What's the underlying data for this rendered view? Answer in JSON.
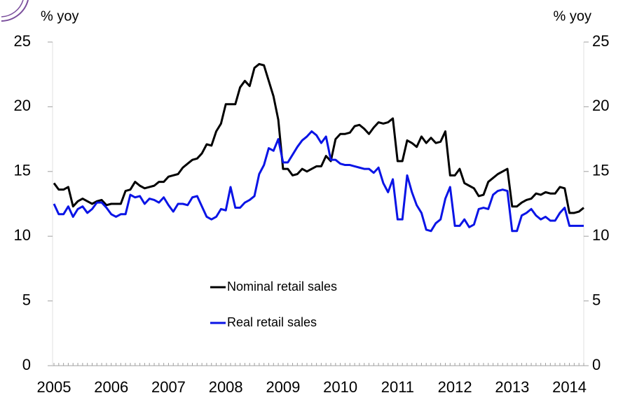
{
  "chart_data": {
    "type": "line",
    "y_label": "% yoy",
    "y2_label": "% yoy",
    "categories": [
      "2005",
      null,
      null,
      null,
      null,
      null,
      null,
      null,
      null,
      null,
      null,
      null,
      "2006",
      null,
      null,
      null,
      null,
      null,
      null,
      null,
      null,
      null,
      null,
      null,
      "2007",
      null,
      null,
      null,
      null,
      null,
      null,
      null,
      null,
      null,
      null,
      null,
      "2008",
      null,
      null,
      null,
      null,
      null,
      null,
      null,
      null,
      null,
      null,
      null,
      "2009",
      null,
      null,
      null,
      null,
      null,
      null,
      null,
      null,
      null,
      null,
      null,
      "2010",
      null,
      null,
      null,
      null,
      null,
      null,
      null,
      null,
      null,
      null,
      null,
      "2011",
      null,
      null,
      null,
      null,
      null,
      null,
      null,
      null,
      null,
      null,
      null,
      "2012",
      null,
      null,
      null,
      null,
      null,
      null,
      null,
      null,
      null,
      null,
      null,
      "2013",
      null,
      null,
      null,
      null,
      null,
      null,
      null,
      null,
      null,
      null,
      null,
      "2014",
      null,
      null,
      null
    ],
    "series": [
      {
        "name": "Nominal retail sales",
        "color": "#000000",
        "values": [
          14.1,
          13.6,
          13.6,
          13.8,
          12.3,
          12.7,
          12.9,
          12.7,
          12.5,
          12.7,
          12.8,
          12.4,
          12.5,
          12.5,
          12.5,
          13.5,
          13.6,
          14.2,
          13.9,
          13.7,
          13.8,
          13.9,
          14.2,
          14.2,
          14.6,
          14.7,
          14.8,
          15.3,
          15.6,
          15.9,
          16.0,
          16.4,
          17.1,
          17.0,
          18.1,
          18.7,
          20.2,
          20.2,
          20.2,
          21.5,
          22.0,
          21.6,
          23.0,
          23.3,
          23.2,
          22.0,
          20.8,
          19.0,
          15.2,
          15.2,
          14.7,
          14.8,
          15.2,
          15.0,
          15.2,
          15.4,
          15.4,
          16.2,
          15.8,
          17.5,
          17.9,
          17.9,
          18.0,
          18.5,
          18.6,
          18.3,
          17.9,
          18.4,
          18.8,
          18.7,
          18.8,
          19.1,
          15.8,
          15.8,
          17.4,
          17.2,
          16.9,
          17.7,
          17.2,
          17.6,
          17.2,
          17.3,
          18.1,
          14.7,
          14.7,
          15.2,
          14.1,
          13.9,
          13.7,
          13.1,
          13.2,
          14.2,
          14.5,
          14.8,
          15.0,
          15.2,
          12.3,
          12.3,
          12.6,
          12.8,
          12.9,
          13.3,
          13.2,
          13.4,
          13.3,
          13.3,
          13.8,
          13.7,
          11.8,
          11.8,
          11.9,
          12.2
        ]
      },
      {
        "name": "Real retail sales",
        "color": "#0a14e6",
        "values": [
          12.5,
          11.7,
          11.7,
          12.3,
          11.5,
          12.1,
          12.3,
          11.8,
          12.1,
          12.6,
          12.6,
          12.2,
          11.7,
          11.5,
          11.7,
          11.7,
          13.2,
          13.0,
          13.1,
          12.5,
          12.9,
          12.8,
          12.6,
          13.0,
          12.4,
          11.9,
          12.5,
          12.5,
          12.4,
          13.0,
          13.1,
          12.3,
          11.5,
          11.3,
          11.5,
          12.1,
          12.0,
          13.8,
          12.2,
          12.2,
          12.6,
          12.8,
          13.1,
          14.8,
          15.5,
          16.8,
          16.6,
          17.5,
          15.7,
          15.7,
          16.3,
          16.9,
          17.4,
          17.7,
          18.1,
          17.8,
          17.2,
          17.7,
          15.9,
          15.9,
          15.6,
          15.5,
          15.5,
          15.4,
          15.3,
          15.2,
          15.2,
          14.9,
          15.3,
          14.1,
          13.4,
          14.4,
          11.3,
          11.3,
          14.7,
          13.4,
          12.4,
          11.8,
          10.5,
          10.4,
          11.0,
          11.3,
          12.9,
          13.8,
          10.8,
          10.8,
          11.3,
          10.7,
          10.9,
          12.1,
          12.2,
          12.1,
          13.2,
          13.5,
          13.6,
          13.5,
          10.4,
          10.4,
          11.6,
          11.8,
          12.1,
          11.6,
          11.3,
          11.5,
          11.2,
          11.2,
          11.8,
          12.2,
          10.8,
          10.8,
          10.8,
          10.8
        ]
      }
    ],
    "ylim": [
      0,
      25
    ],
    "yticks": [
      0,
      5,
      10,
      15,
      20,
      25
    ],
    "y2lim": [
      0,
      25
    ],
    "y2ticks": [
      0,
      5,
      10,
      15,
      20,
      25
    ],
    "grid": false
  }
}
